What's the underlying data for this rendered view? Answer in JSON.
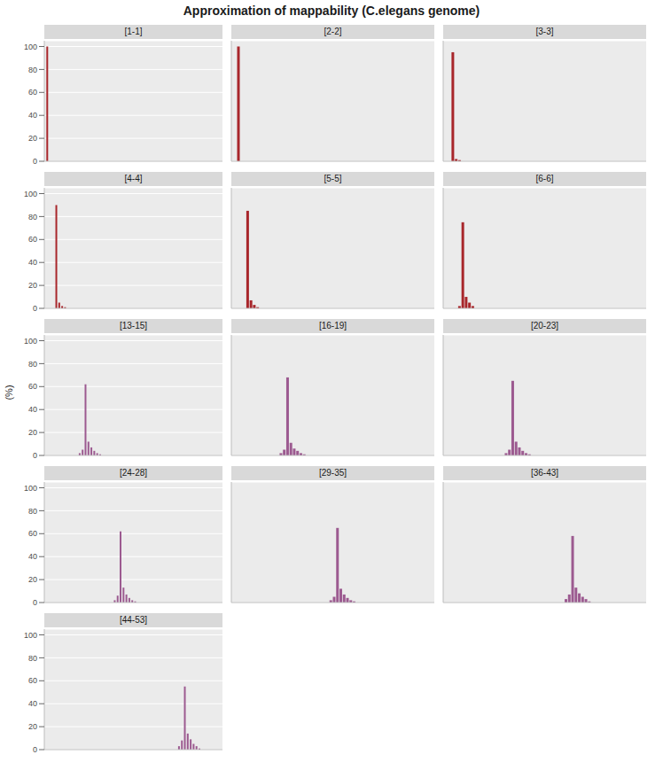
{
  "chart_data": {
    "type": "bar",
    "title": "Approximation of mappability (C.elegans genome)",
    "y_label": "(%)",
    "ylim": [
      0,
      105
    ],
    "yticks": [
      0,
      20,
      40,
      60,
      80,
      100
    ],
    "xlim": [
      0,
      61
    ],
    "grid": true,
    "tick_labels": "y",
    "panels": [
      {
        "title": "[1-1]",
        "color": "#a8262b",
        "x": [
          1
        ],
        "values": [
          100
        ]
      },
      {
        "title": "[2-2]",
        "color": "#a8262b",
        "x": [
          2
        ],
        "values": [
          100
        ]
      },
      {
        "title": "[3-3]",
        "color": "#a8262b",
        "x": [
          3,
          4,
          5
        ],
        "values": [
          95,
          2,
          1
        ]
      },
      {
        "title": "[4-4]",
        "color": "#a8262b",
        "x": [
          4,
          5,
          6,
          7
        ],
        "values": [
          90,
          5,
          2,
          1
        ]
      },
      {
        "title": "[5-5]",
        "color": "#a8262b",
        "x": [
          5,
          6,
          7,
          8
        ],
        "values": [
          85,
          7,
          3,
          1
        ]
      },
      {
        "title": "[6-6]",
        "color": "#a8262b",
        "x": [
          5,
          6,
          7,
          8,
          9
        ],
        "values": [
          2,
          75,
          10,
          5,
          2
        ]
      },
      {
        "title": "[13-15]",
        "color": "#9c5a90",
        "x": [
          12,
          13,
          14,
          15,
          16,
          17,
          18,
          19
        ],
        "values": [
          2,
          5,
          62,
          12,
          7,
          4,
          2,
          1
        ]
      },
      {
        "title": "[16-19]",
        "color": "#9c5a90",
        "x": [
          15,
          16,
          17,
          18,
          19,
          20,
          21,
          22
        ],
        "values": [
          2,
          5,
          68,
          11,
          6,
          4,
          2,
          1
        ]
      },
      {
        "title": "[20-23]",
        "color": "#9c5a90",
        "x": [
          19,
          20,
          21,
          22,
          23,
          24,
          25,
          26
        ],
        "values": [
          2,
          5,
          65,
          12,
          7,
          4,
          2,
          1
        ]
      },
      {
        "title": "[24-28]",
        "color": "#9c5a90",
        "x": [
          24,
          25,
          26,
          27,
          28,
          29,
          30,
          31
        ],
        "values": [
          2,
          6,
          62,
          13,
          7,
          4,
          2,
          1
        ]
      },
      {
        "title": "[29-35]",
        "color": "#9c5a90",
        "x": [
          30,
          31,
          32,
          33,
          34,
          35,
          36,
          37
        ],
        "values": [
          2,
          5,
          65,
          12,
          7,
          4,
          2,
          1
        ]
      },
      {
        "title": "[36-43]",
        "color": "#9c5a90",
        "x": [
          37,
          38,
          39,
          40,
          41,
          42,
          43,
          44
        ],
        "values": [
          3,
          7,
          58,
          13,
          8,
          5,
          3,
          1
        ]
      },
      {
        "title": "[44-53]",
        "color": "#9c5a90",
        "x": [
          46,
          47,
          48,
          49,
          50,
          51,
          52,
          53
        ],
        "values": [
          3,
          8,
          55,
          14,
          9,
          5,
          3,
          1
        ]
      }
    ]
  }
}
